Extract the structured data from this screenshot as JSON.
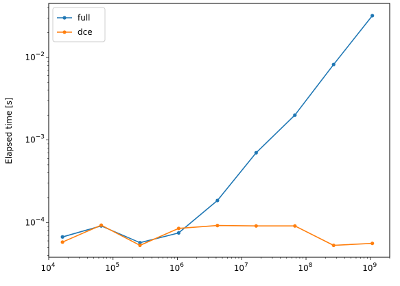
{
  "chart_data": {
    "type": "line",
    "xscale": "log",
    "yscale": "log",
    "xlim": [
      10000,
      2000000000
    ],
    "ylim": [
      3.8e-05,
      0.045
    ],
    "ylabel": "Elapsed time [s]",
    "xlabel": "",
    "legend_position": "top-left",
    "grid": false,
    "x_ticks": [
      {
        "value": 10000,
        "base": "10",
        "exp": "4"
      },
      {
        "value": 100000,
        "base": "10",
        "exp": "5"
      },
      {
        "value": 1000000,
        "base": "10",
        "exp": "6"
      },
      {
        "value": 10000000,
        "base": "10",
        "exp": "7"
      },
      {
        "value": 100000000,
        "base": "10",
        "exp": "8"
      },
      {
        "value": 1000000000,
        "base": "10",
        "exp": "9"
      }
    ],
    "y_ticks": [
      {
        "value": 0.0001,
        "base": "10",
        "exp": "−4"
      },
      {
        "value": 0.001,
        "base": "10",
        "exp": "−3"
      },
      {
        "value": 0.01,
        "base": "10",
        "exp": "−2"
      }
    ],
    "series": [
      {
        "name": "full",
        "color": "#1f77b4",
        "x": [
          16384,
          65536,
          262144,
          1048576,
          4194304,
          16777216,
          67108864,
          268435456,
          1073741824
        ],
        "y": [
          6.7e-05,
          9.1e-05,
          5.7e-05,
          7.5e-05,
          0.000185,
          0.0007,
          0.002,
          0.0082,
          0.032
        ]
      },
      {
        "name": "dce",
        "color": "#ff7f0e",
        "x": [
          16384,
          65536,
          262144,
          1048576,
          4194304,
          16777216,
          67108864,
          268435456,
          1073741824
        ],
        "y": [
          5.8e-05,
          9.3e-05,
          5.3e-05,
          8.5e-05,
          9.2e-05,
          9.1e-05,
          9.1e-05,
          5.3e-05,
          5.6e-05
        ]
      }
    ]
  }
}
